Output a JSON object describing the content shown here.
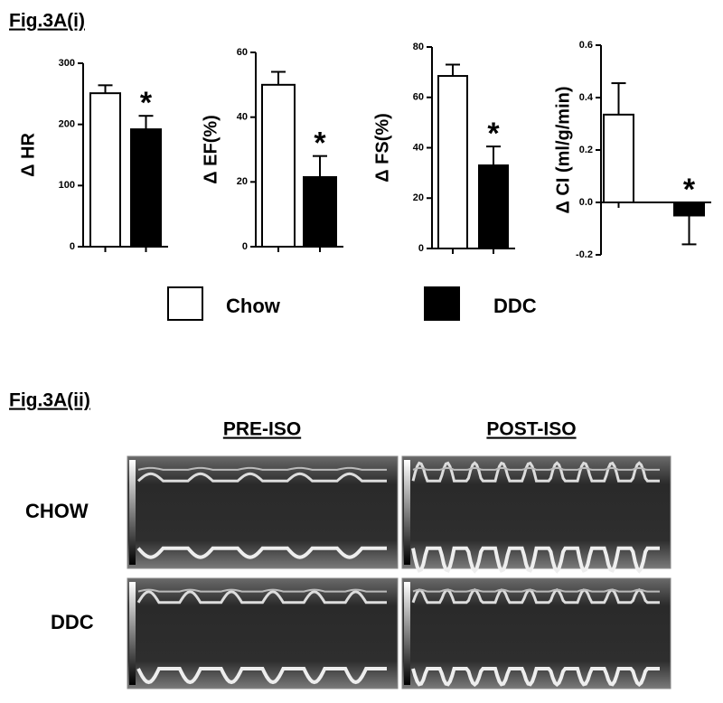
{
  "title": "Fig.3A(i)",
  "chart_data": [
    {
      "type": "bar",
      "ylabel": "Δ HR",
      "categories": [
        null,
        null
      ],
      "series_names": [
        "Chow",
        "DDC"
      ],
      "values": [
        251,
        192
      ],
      "errors": [
        13,
        22
      ],
      "colors": [
        "#ffffff",
        "#000000"
      ],
      "annotation": "*",
      "ylim": [
        0,
        300
      ],
      "yticks": [
        0,
        100,
        200,
        300
      ]
    },
    {
      "type": "bar",
      "ylabel": "Δ EF(%)",
      "categories": [
        null,
        null
      ],
      "series_names": [
        "Chow",
        "DDC"
      ],
      "values": [
        50,
        21.5
      ],
      "errors": [
        4,
        6.5
      ],
      "colors": [
        "#ffffff",
        "#000000"
      ],
      "annotation": "*",
      "ylim": [
        0,
        60
      ],
      "yticks": [
        0,
        20,
        40,
        60
      ]
    },
    {
      "type": "bar",
      "ylabel": "Δ FS(%)",
      "categories": [
        null,
        null
      ],
      "series_names": [
        "Chow",
        "DDC"
      ],
      "values": [
        68.5,
        33
      ],
      "errors": [
        4.5,
        7.5
      ],
      "colors": [
        "#ffffff",
        "#000000"
      ],
      "annotation": "*",
      "ylim": [
        0,
        80
      ],
      "yticks": [
        0,
        20,
        40,
        60,
        80
      ]
    },
    {
      "type": "bar",
      "ylabel": "Δ CI (ml/g/min)",
      "categories": [
        null,
        null
      ],
      "series_names": [
        "Chow",
        "DDC"
      ],
      "values": [
        0.335,
        -0.05
      ],
      "errors": [
        0.12,
        0.11
      ],
      "colors": [
        "#ffffff",
        "#000000"
      ],
      "annotation": "*",
      "ylim": [
        -0.2,
        0.6
      ],
      "yticks": [
        -0.2,
        {
          "value": 0,
          "label": "0.0"
        },
        0.2,
        0.4,
        0.6
      ]
    }
  ],
  "legend": [
    {
      "name": "Chow",
      "color": "#ffffff"
    },
    {
      "name": "DDC",
      "color": "#000000"
    }
  ],
  "panel2": {
    "title": "Fig.3A(ii)",
    "columns": [
      "PRE-ISO",
      "POST-ISO"
    ],
    "rows": [
      "CHOW",
      "DDC"
    ]
  }
}
